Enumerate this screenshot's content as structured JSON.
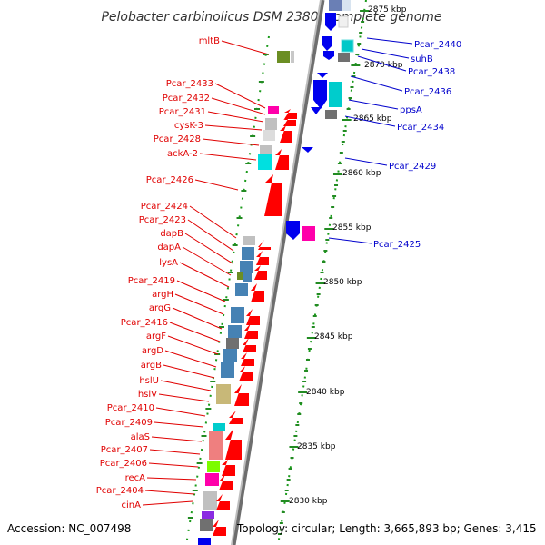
{
  "title": "Pelobacter carbinolicus DSM 2380, complete genome",
  "footer": {
    "accession": "Accession: NC_007498",
    "topology": "Topology: circular; Length: 3,665,893 bp; Genes: 3,415"
  },
  "scale_labels": [
    "2875 kbp",
    "2870 kbp",
    "2865 kbp",
    "2860 kbp",
    "2855 kbp",
    "2850 kbp",
    "2845 kbp",
    "2840 kbp",
    "2835 kbp",
    "2830 kbp"
  ],
  "reverse_labels": [
    "mltB",
    "Pcar_2433",
    "Pcar_2432",
    "Pcar_2431",
    "cysK-3",
    "Pcar_2428",
    "ackA-2",
    "Pcar_2426",
    "Pcar_2424",
    "Pcar_2423",
    "dapB",
    "dapA",
    "lysA",
    "Pcar_2419",
    "argH",
    "argG",
    "Pcar_2416",
    "argF",
    "argD",
    "argB",
    "hslU",
    "hslV",
    "Pcar_2410",
    "Pcar_2409",
    "alaS",
    "Pcar_2407",
    "Pcar_2406",
    "recA",
    "Pcar_2404",
    "cinA"
  ],
  "forward_labels": [
    "Pcar_2440",
    "suhB",
    "Pcar_2438",
    "Pcar_2436",
    "ppsA",
    "Pcar_2434",
    "Pcar_2429",
    "Pcar_2425"
  ],
  "colors": {
    "reverse_label": "#e00000",
    "forward_label": "#0000cc",
    "backbone": "#9a9a9a",
    "tick": "#228b22",
    "dots": "#1a9a1a"
  }
}
